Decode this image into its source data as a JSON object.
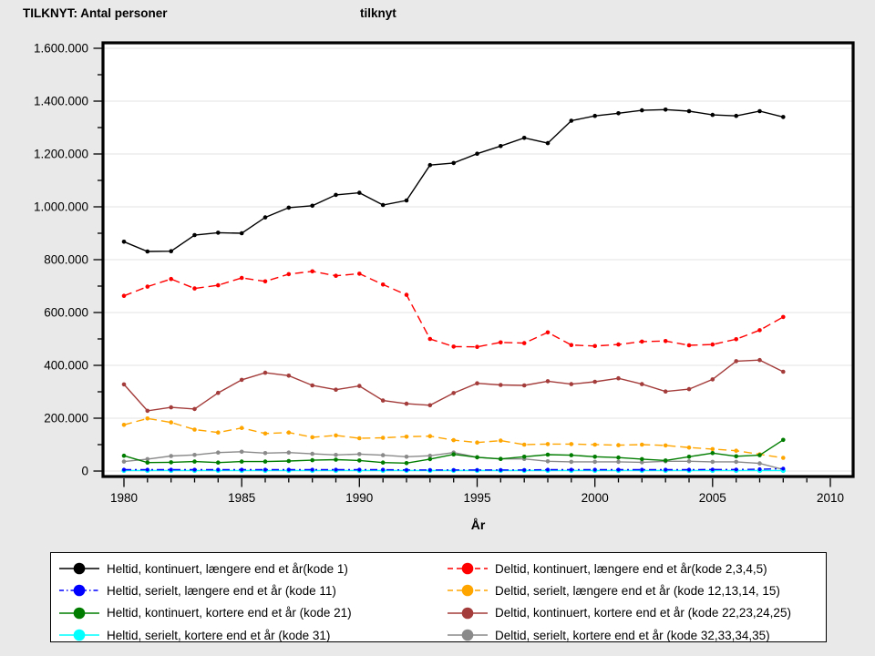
{
  "page": {
    "title_left": "TILKNYT: Antal personer",
    "title_right": "tilknyt",
    "background": "#e9e9e9",
    "plot_background": "#ffffff",
    "grid_color": "#e3e3e3"
  },
  "chart_data": {
    "type": "line",
    "title": "TILKNYT: Antal personer tilknyt",
    "xlabel": "År",
    "ylabel": "",
    "grid": "horizontal",
    "legend_position": "bottom",
    "xlim": [
      1979,
      2011
    ],
    "ylim": [
      0,
      1600000
    ],
    "x": [
      1980,
      1981,
      1982,
      1983,
      1984,
      1985,
      1986,
      1987,
      1988,
      1989,
      1990,
      1991,
      1992,
      1993,
      1994,
      1995,
      1996,
      1997,
      1998,
      1999,
      2000,
      2001,
      2002,
      2003,
      2004,
      2005,
      2006,
      2007,
      2008
    ],
    "xticks": {
      "major": [
        1980,
        1985,
        1990,
        1995,
        2000,
        2005,
        2010
      ],
      "minor_from": 1980,
      "minor_to": 2010
    },
    "yticks": {
      "values": [
        0,
        200000,
        400000,
        600000,
        800000,
        1000000,
        1200000,
        1400000,
        1600000
      ],
      "labels": [
        "0",
        "200.000",
        "400.000",
        "600.000",
        "800.000",
        "1.000.000",
        "1.200.000",
        "1.400.000",
        "1.600.000"
      ],
      "minor_step": 100000
    },
    "draw_order": [
      0,
      4,
      6,
      5,
      7,
      2,
      3,
      1
    ],
    "series": [
      {
        "id": "kode1",
        "name": "Heltid, kontinuert, længere end et år(kode 1)",
        "color": "#000000",
        "line_style": "solid",
        "marker_r": 2.3,
        "values": [
          868000,
          831000,
          832000,
          893000,
          902000,
          900000,
          960000,
          997000,
          1004000,
          1045000,
          1053000,
          1007000,
          1024000,
          1158000,
          1166000,
          1201000,
          1230000,
          1261000,
          1241000,
          1326000,
          1344000,
          1354000,
          1365000,
          1368000,
          1362000,
          1348000,
          1344000,
          1362000,
          1340000
        ]
      },
      {
        "id": "kode11",
        "name": "Heltid, serielt, længere end et år (kode 11)",
        "color": "#0000ff",
        "line_style": "dashdot",
        "marker_r": 2.1,
        "values": [
          5000,
          5000,
          5000,
          5000,
          5000,
          5000,
          5000,
          5000,
          5000,
          5000,
          5000,
          5000,
          4000,
          4000,
          4000,
          4000,
          4000,
          4000,
          5000,
          5000,
          5000,
          5000,
          5000,
          5000,
          5000,
          6000,
          6000,
          7000,
          9000
        ]
      },
      {
        "id": "kode21",
        "name": "Heltid, kontinuert, kortere end et år (kode 21)",
        "color": "#007d00",
        "line_style": "solid",
        "marker_r": 2.3,
        "values": [
          58000,
          32000,
          33000,
          36000,
          32000,
          36000,
          36000,
          38000,
          41000,
          43000,
          40000,
          32000,
          30000,
          45000,
          63000,
          52000,
          46000,
          54000,
          62000,
          60000,
          54000,
          51000,
          45000,
          40000,
          54000,
          68000,
          56000,
          60000,
          118000
        ]
      },
      {
        "id": "kode31",
        "name": "Heltid, serielt, kortere end et år (kode 31)",
        "color": "#00ffff",
        "line_style": "solid",
        "marker_r": 2.7,
        "values": [
          2000,
          2000,
          2000,
          2000,
          2000,
          2000,
          2000,
          2000,
          2000,
          2000,
          2000,
          2000,
          2000,
          2000,
          2000,
          2000,
          2000,
          2000,
          2000,
          2000,
          2000,
          2000,
          2000,
          2000,
          2000,
          2000,
          2000,
          2000,
          2000
        ]
      },
      {
        "id": "kode2345",
        "name": "Deltid, kontinuert, længere end et år(kode 2,3,4,5)",
        "color": "#ff0000",
        "line_style": "dash",
        "marker_r": 2.3,
        "values": [
          663000,
          698000,
          727000,
          691000,
          703000,
          731000,
          718000,
          745000,
          756000,
          739000,
          747000,
          706000,
          667000,
          500000,
          471000,
          470000,
          487000,
          484000,
          525000,
          477000,
          473000,
          479000,
          490000,
          492000,
          476000,
          479000,
          499000,
          533000,
          583000
        ]
      },
      {
        "id": "kode12",
        "name": "Deltid, serielt, længere end et år (kode 12,13,14, 15)",
        "color": "#ffa500",
        "line_style": "dash",
        "marker_r": 2.3,
        "values": [
          175000,
          199000,
          184000,
          157000,
          146000,
          163000,
          142000,
          146000,
          128000,
          135000,
          124000,
          126000,
          130000,
          132000,
          117000,
          108000,
          115000,
          100000,
          102000,
          102000,
          100000,
          98000,
          100000,
          97000,
          89000,
          83000,
          77000,
          63000,
          50000
        ]
      },
      {
        "id": "kode22",
        "name": "Deltid, kontinuert, kortere end et år (kode 22,23,24,25)",
        "color": "#a33c3a",
        "line_style": "solid",
        "marker_r": 2.3,
        "values": [
          328000,
          228000,
          241000,
          235000,
          296000,
          345000,
          372000,
          361000,
          324000,
          308000,
          322000,
          267000,
          255000,
          249000,
          295000,
          332000,
          326000,
          324000,
          340000,
          329000,
          338000,
          351000,
          329000,
          301000,
          310000,
          347000,
          416000,
          420000,
          376000
        ]
      },
      {
        "id": "kode32",
        "name": "Deltid, serielt, kortere end et år (kode 32,33,34,35)",
        "color": "#8a8a8a",
        "line_style": "solid",
        "marker_r": 2.3,
        "values": [
          36000,
          45000,
          57000,
          61000,
          70000,
          73000,
          68000,
          70000,
          65000,
          61000,
          64000,
          60000,
          54000,
          58000,
          70000,
          52000,
          46000,
          46000,
          37000,
          35000,
          35000,
          35000,
          33000,
          37000,
          37000,
          35000,
          35000,
          29000,
          6000
        ]
      }
    ]
  }
}
